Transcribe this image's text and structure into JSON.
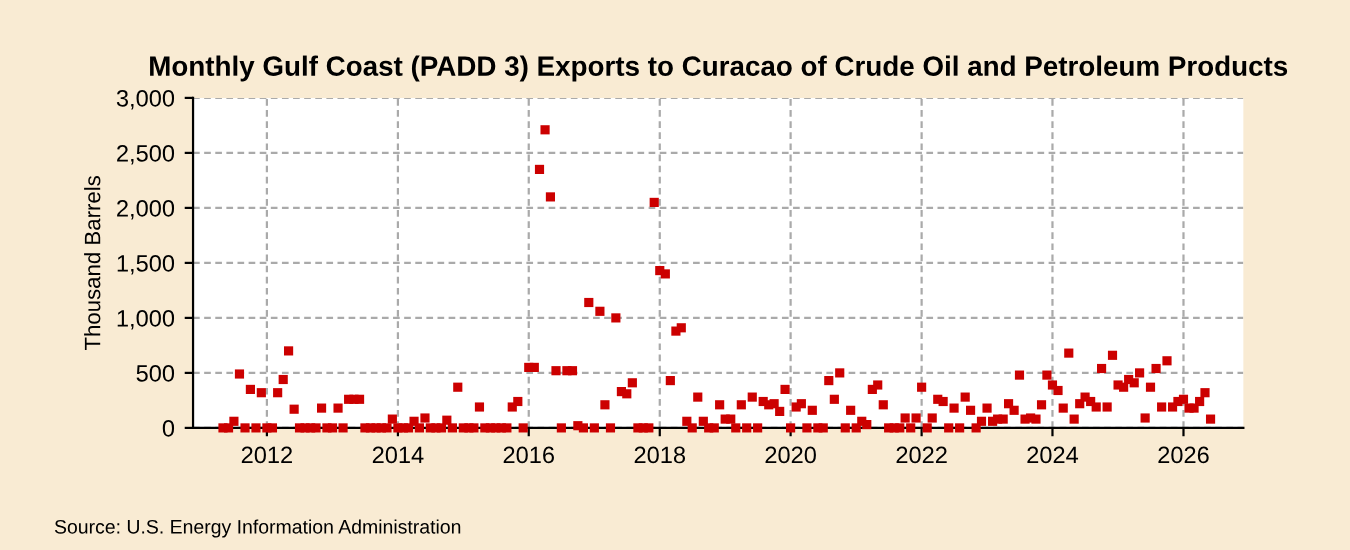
{
  "chart_data": {
    "type": "scatter",
    "title": "Monthly Gulf Coast (PADD 3) Exports to Curacao of Crude Oil and Petroleum Products",
    "ylabel": "Thousand Barrels",
    "annotations": [
      "Source: U.S. Energy Information Administration"
    ],
    "x": [
      "2011-05",
      "2011-06",
      "2011-07",
      "2011-08",
      "2011-09",
      "2011-10",
      "2011-11",
      "2011-12",
      "2012-01",
      "2012-02",
      "2012-03",
      "2012-04",
      "2012-05",
      "2012-06",
      "2012-07",
      "2012-08",
      "2012-09",
      "2012-10",
      "2012-11",
      "2012-12",
      "2013-01",
      "2013-02",
      "2013-03",
      "2013-04",
      "2013-05",
      "2013-06",
      "2013-07",
      "2013-08",
      "2013-09",
      "2013-10",
      "2013-11",
      "2013-12",
      "2014-01",
      "2014-02",
      "2014-03",
      "2014-04",
      "2014-05",
      "2014-06",
      "2014-07",
      "2014-08",
      "2014-09",
      "2014-10",
      "2014-11",
      "2014-12",
      "2015-01",
      "2015-02",
      "2015-03",
      "2015-04",
      "2015-05",
      "2015-06",
      "2015-07",
      "2015-08",
      "2015-09",
      "2015-10",
      "2015-11",
      "2015-12",
      "2016-01",
      "2016-02",
      "2016-03",
      "2016-04",
      "2016-05",
      "2016-06",
      "2016-07",
      "2016-08",
      "2016-09",
      "2016-10",
      "2016-11",
      "2016-12",
      "2017-01",
      "2017-02",
      "2017-03",
      "2017-04",
      "2017-05",
      "2017-06",
      "2017-07",
      "2017-08",
      "2017-09",
      "2017-10",
      "2017-11",
      "2017-12",
      "2018-01",
      "2018-02",
      "2018-03",
      "2018-04",
      "2018-05",
      "2018-06",
      "2018-07",
      "2018-08",
      "2018-09",
      "2018-10",
      "2018-11",
      "2018-12",
      "2019-01",
      "2019-02",
      "2019-03",
      "2019-04",
      "2019-05",
      "2019-06",
      "2019-07",
      "2019-08",
      "2019-09",
      "2019-10",
      "2019-11",
      "2019-12",
      "2020-01",
      "2020-02",
      "2020-03",
      "2020-04",
      "2020-05",
      "2020-06",
      "2020-07",
      "2020-08",
      "2020-09",
      "2020-10",
      "2020-11",
      "2020-12",
      "2021-01",
      "2021-02",
      "2021-03",
      "2021-04",
      "2021-05",
      "2021-06",
      "2021-07",
      "2021-08",
      "2021-09",
      "2021-10",
      "2021-11",
      "2021-12",
      "2022-01",
      "2022-02",
      "2022-03",
      "2022-04",
      "2022-05",
      "2022-06",
      "2022-07",
      "2022-08",
      "2022-09",
      "2022-10",
      "2022-11",
      "2022-12",
      "2023-01",
      "2023-02",
      "2023-03",
      "2023-04",
      "2023-05",
      "2023-06",
      "2023-07",
      "2023-08",
      "2023-09",
      "2023-10",
      "2023-11",
      "2023-12",
      "2024-01",
      "2024-02",
      "2024-03",
      "2024-04",
      "2024-05",
      "2024-06",
      "2024-07",
      "2024-08",
      "2024-09",
      "2024-10",
      "2024-11",
      "2024-12",
      "2025-01",
      "2025-02",
      "2025-03",
      "2025-04",
      "2025-05",
      "2025-06",
      "2025-07",
      "2025-08",
      "2025-09",
      "2025-10",
      "2025-11",
      "2025-12",
      "2026-01",
      "2026-02",
      "2026-03",
      "2026-04",
      "2026-05",
      "2026-06"
    ],
    "series": [
      {
        "color": "#cc0000",
        "values": [
          0,
          0,
          60,
          490,
          0,
          350,
          0,
          320,
          0,
          0,
          320,
          440,
          700,
          170,
          0,
          0,
          0,
          0,
          180,
          0,
          0,
          180,
          0,
          260,
          260,
          260,
          0,
          0,
          0,
          0,
          0,
          80,
          0,
          0,
          0,
          60,
          0,
          90,
          0,
          0,
          0,
          70,
          0,
          370,
          0,
          0,
          0,
          190,
          0,
          0,
          0,
          0,
          0,
          190,
          240,
          0,
          550,
          550,
          2350,
          2710,
          2100,
          520,
          0,
          520,
          520,
          20,
          0,
          1140,
          0,
          1060,
          210,
          0,
          1000,
          330,
          310,
          410,
          0,
          0,
          0,
          2050,
          1430,
          1400,
          430,
          880,
          910,
          60,
          0,
          280,
          60,
          0,
          0,
          210,
          80,
          80,
          0,
          210,
          0,
          280,
          0,
          240,
          210,
          220,
          150,
          350,
          0,
          190,
          220,
          0,
          160,
          0,
          0,
          430,
          260,
          500,
          0,
          160,
          0,
          60,
          30,
          350,
          390,
          210,
          0,
          0,
          0,
          90,
          0,
          90,
          370,
          0,
          90,
          260,
          240,
          0,
          180,
          0,
          280,
          160,
          0,
          60,
          180,
          60,
          80,
          80,
          220,
          160,
          480,
          80,
          90,
          80,
          210,
          480,
          390,
          340,
          180,
          680,
          80,
          220,
          280,
          240,
          190,
          540,
          190,
          660,
          390,
          370,
          440,
          410,
          500,
          90,
          370,
          540,
          190,
          610,
          190,
          240,
          260,
          180,
          180,
          240,
          320,
          80
        ]
      }
    ],
    "xlim": [
      "2010-11-15",
      "2026-12-01"
    ],
    "xticks": [
      {
        "value": "2012",
        "label": "2012"
      },
      {
        "value": "2014",
        "label": "2014"
      },
      {
        "value": "2016",
        "label": "2016"
      },
      {
        "value": "2018",
        "label": "2018"
      },
      {
        "value": "2020",
        "label": "2020"
      },
      {
        "value": "2022",
        "label": "2022"
      },
      {
        "value": "2024",
        "label": "2024"
      },
      {
        "value": "2026",
        "label": "2026"
      }
    ],
    "ylim": [
      0,
      3000
    ],
    "yticks": [
      {
        "value": 0,
        "label": "0"
      },
      {
        "value": 500,
        "label": "500"
      },
      {
        "value": 1000,
        "label": "1,000"
      },
      {
        "value": 1500,
        "label": "1,500"
      },
      {
        "value": 2000,
        "label": "2,000"
      },
      {
        "value": 2500,
        "label": "2,500"
      },
      {
        "value": 3000,
        "label": "3,000"
      }
    ],
    "grid": true,
    "marker": "square"
  }
}
